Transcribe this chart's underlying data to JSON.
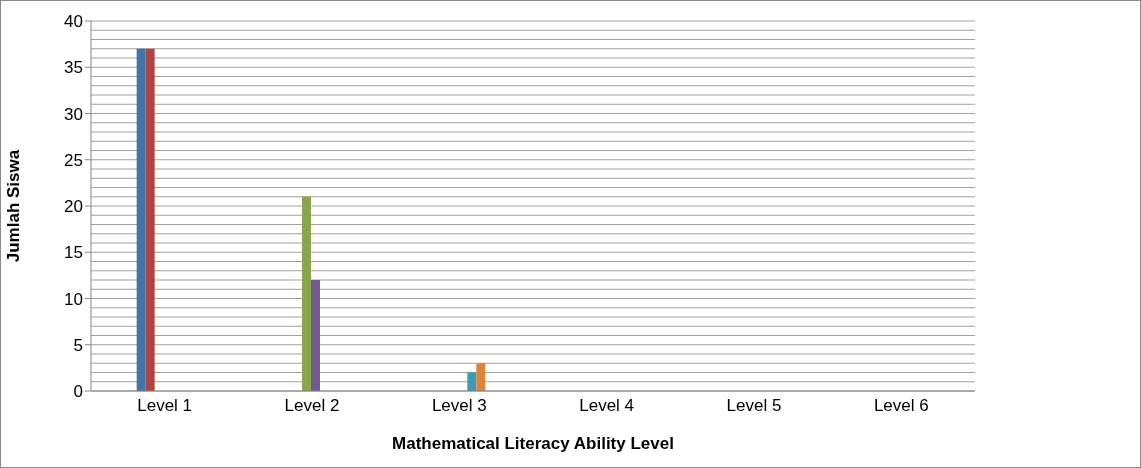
{
  "chart_data": {
    "type": "bar",
    "xlabel": "Mathematical Literacy Ability Level",
    "ylabel": "Jumlah Siswa",
    "categories": [
      "Level 1",
      "Level 2",
      "Level 3",
      "Level 4",
      "Level 5",
      "Level 6"
    ],
    "series": [
      {
        "color": "#4572a7",
        "values": [
          37,
          null,
          null,
          null,
          null,
          null
        ]
      },
      {
        "color": "#aa4643",
        "values": [
          37,
          null,
          null,
          null,
          null,
          null
        ]
      },
      {
        "color": "#89a54e",
        "values": [
          null,
          21,
          null,
          null,
          null,
          null
        ]
      },
      {
        "color": "#71588f",
        "values": [
          null,
          12,
          null,
          null,
          null,
          null
        ]
      },
      {
        "color": "#4198af",
        "values": [
          null,
          null,
          2,
          null,
          null,
          null
        ]
      },
      {
        "color": "#db843d",
        "values": [
          null,
          null,
          3,
          null,
          null,
          null
        ]
      }
    ],
    "ylim": [
      0,
      40
    ],
    "yticks": [
      0,
      {
        "value": 1,
        "label": null
      },
      {
        "value": 2,
        "label": null
      },
      {
        "value": 3,
        "label": null
      },
      {
        "value": 4,
        "label": null
      },
      5,
      {
        "value": 6,
        "label": null
      },
      {
        "value": 7,
        "label": null
      },
      {
        "value": 8,
        "label": null
      },
      {
        "value": 9,
        "label": null
      },
      10,
      {
        "value": 11,
        "label": null
      },
      {
        "value": 12,
        "label": null
      },
      {
        "value": 13,
        "label": null
      },
      {
        "value": 14,
        "label": null
      },
      15,
      {
        "value": 16,
        "label": null
      },
      {
        "value": 17,
        "label": null
      },
      {
        "value": 18,
        "label": null
      },
      {
        "value": 19,
        "label": null
      },
      20,
      {
        "value": 21,
        "label": null
      },
      {
        "value": 22,
        "label": null
      },
      {
        "value": 23,
        "label": null
      },
      {
        "value": 24,
        "label": null
      },
      25,
      {
        "value": 26,
        "label": null
      },
      {
        "value": 27,
        "label": null
      },
      {
        "value": 28,
        "label": null
      },
      {
        "value": 29,
        "label": null
      },
      30,
      {
        "value": 31,
        "label": null
      },
      {
        "value": 32,
        "label": null
      },
      {
        "value": 33,
        "label": null
      },
      {
        "value": 34,
        "label": null
      },
      35,
      {
        "value": 36,
        "label": null
      },
      {
        "value": 37,
        "label": null
      },
      {
        "value": 38,
        "label": null
      },
      {
        "value": 39,
        "label": null
      },
      40
    ],
    "grid": "y",
    "legend": false
  }
}
